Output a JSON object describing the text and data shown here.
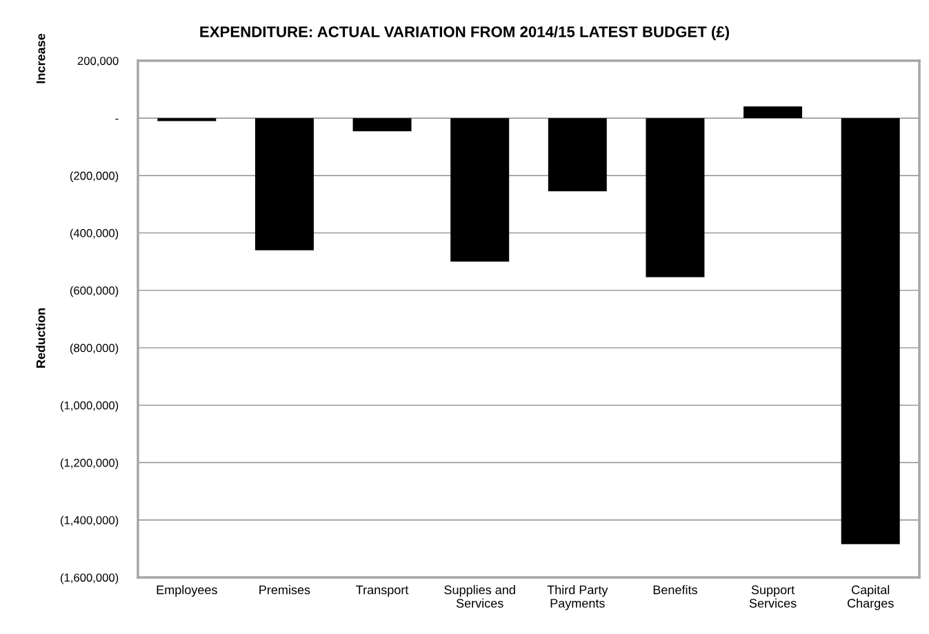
{
  "chart_data": {
    "type": "bar",
    "title": "EXPENDITURE: ACTUAL VARIATION FROM 2014/15 LATEST BUDGET (£)",
    "ylabel": "Reduction",
    "annotations": [
      "Increase"
    ],
    "categories": [
      "Employees",
      "Premises",
      "Transport",
      "Supplies and\nServices",
      "Third Party\nPayments",
      "Benefits",
      "Support\nServices",
      "Capital\nCharges"
    ],
    "values": [
      -10000,
      -460000,
      -46000,
      -500000,
      -255000,
      -554000,
      41000,
      -1484000
    ],
    "color": "#000000",
    "ylim": [
      -1600000,
      200000
    ],
    "yticks": [
      {
        "value": -1600000,
        "label": "(1,600,000)"
      },
      {
        "value": -1400000,
        "label": "(1,400,000)"
      },
      {
        "value": -1200000,
        "label": "(1,200,000)"
      },
      {
        "value": -1000000,
        "label": "(1,000,000)"
      },
      {
        "value": -800000,
        "label": "(800,000)"
      },
      {
        "value": -600000,
        "label": "(600,000)"
      },
      {
        "value": -400000,
        "label": "(400,000)"
      },
      {
        "value": -200000,
        "label": "(200,000)"
      },
      {
        "value": 0,
        "label": "-"
      },
      {
        "value": 200000,
        "label": "200,000"
      }
    ],
    "grid": "y"
  }
}
